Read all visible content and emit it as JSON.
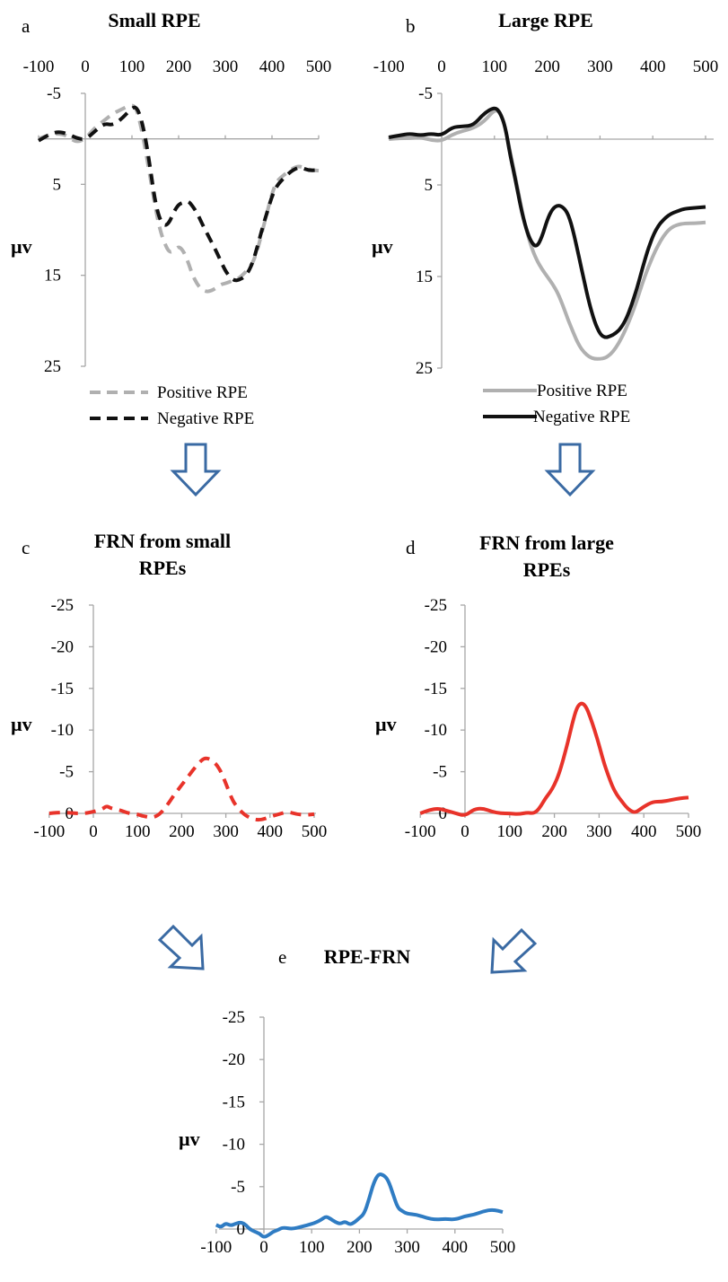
{
  "chart_data": [
    {
      "id": "a",
      "type": "line",
      "panel_label": "a",
      "title": "Small RPE",
      "ylabel": "µv",
      "xlim": [
        -100,
        500
      ],
      "ylim": [
        -5,
        25
      ],
      "y_inverted": true,
      "x_axis_position": "top",
      "xticks": [
        -100,
        0,
        100,
        200,
        300,
        400,
        500
      ],
      "yticks": [
        -5,
        5,
        15,
        25
      ],
      "legend_position": "bottom",
      "series": [
        {
          "name": "Positive RPE",
          "color": "#b0b0b0",
          "dash": "dashed",
          "x": [
            -100,
            -80,
            -60,
            -40,
            -20,
            0,
            20,
            40,
            60,
            80,
            100,
            110,
            120,
            130,
            140,
            150,
            160,
            170,
            180,
            190,
            200,
            210,
            220,
            230,
            240,
            250,
            260,
            270,
            280,
            290,
            300,
            310,
            320,
            330,
            340,
            350,
            360,
            370,
            380,
            390,
            400,
            410,
            420,
            430,
            440,
            450,
            460,
            480,
            500
          ],
          "y": [
            0,
            -0.4,
            -0.6,
            -0.4,
            0.4,
            0,
            -1.2,
            -2,
            -2.8,
            -3.3,
            -3.8,
            -3.3,
            -1.2,
            1.5,
            4.5,
            7.5,
            10,
            11.5,
            12.5,
            12.3,
            11.8,
            12.3,
            13.5,
            15,
            16,
            16.6,
            16.8,
            16.7,
            16.4,
            16,
            15.9,
            15.7,
            15.5,
            15.3,
            14.8,
            14.3,
            13.5,
            12,
            10,
            8,
            6,
            4.7,
            4.2,
            3.8,
            3.4,
            3.1,
            3.0,
            3.4,
            3.5
          ]
        },
        {
          "name": "Negative RPE",
          "color": "#111111",
          "dash": "dashed",
          "x": [
            -100,
            -80,
            -60,
            -40,
            -20,
            0,
            20,
            40,
            60,
            80,
            100,
            110,
            120,
            130,
            140,
            150,
            160,
            170,
            180,
            190,
            200,
            210,
            220,
            230,
            240,
            250,
            260,
            270,
            280,
            290,
            300,
            310,
            320,
            330,
            340,
            350,
            360,
            370,
            380,
            390,
            400,
            410,
            420,
            430,
            440,
            450,
            460,
            480,
            500
          ],
          "y": [
            0.2,
            -0.4,
            -0.8,
            -0.6,
            -0.1,
            0.1,
            -0.8,
            -1.7,
            -1.5,
            -2.3,
            -3.4,
            -3.5,
            -2.2,
            0.2,
            3.5,
            7,
            8.9,
            9.6,
            9.2,
            8,
            7.2,
            7,
            6.8,
            7.4,
            8.2,
            9.3,
            10.3,
            11.3,
            12.3,
            13.4,
            14.5,
            15.2,
            15.6,
            15.5,
            15.2,
            14.6,
            13.4,
            11.6,
            9.7,
            8,
            6.3,
            5.2,
            4.6,
            4.1,
            3.6,
            3.3,
            3.1,
            3.5,
            3.4
          ]
        }
      ]
    },
    {
      "id": "b",
      "type": "line",
      "panel_label": "b",
      "title": "Large RPE",
      "ylabel": "µv",
      "xlim": [
        -100,
        500
      ],
      "ylim": [
        -5,
        25
      ],
      "y_inverted": true,
      "x_axis_position": "top",
      "xticks": [
        -100,
        0,
        100,
        200,
        300,
        400,
        500
      ],
      "yticks": [
        -5,
        5,
        15,
        25
      ],
      "legend_position": "bottom",
      "series": [
        {
          "name": "Positive RPE",
          "color": "#b0b0b0",
          "dash": "solid",
          "x": [
            -100,
            -80,
            -60,
            -40,
            -20,
            0,
            20,
            40,
            60,
            80,
            100,
            110,
            120,
            130,
            140,
            150,
            160,
            170,
            180,
            190,
            200,
            210,
            220,
            230,
            240,
            250,
            260,
            270,
            280,
            290,
            300,
            310,
            320,
            330,
            340,
            350,
            360,
            370,
            380,
            390,
            400,
            410,
            420,
            430,
            440,
            450,
            460,
            480,
            500
          ],
          "y": [
            0,
            -0.1,
            -0.1,
            -0.2,
            0.1,
            0.2,
            -0.5,
            -0.9,
            -1.2,
            -1.9,
            -3.2,
            -3.0,
            -1.5,
            1.5,
            4.2,
            7.2,
            9.8,
            11.8,
            13.2,
            14.2,
            15,
            15.8,
            16.8,
            18.2,
            19.8,
            21.2,
            22.5,
            23.3,
            23.8,
            24.0,
            24.0,
            23.9,
            23.5,
            22.8,
            21.8,
            20.6,
            19.2,
            17.6,
            15.8,
            14.2,
            12.8,
            11.6,
            10.6,
            9.9,
            9.5,
            9.3,
            9.2,
            9.2,
            9.1
          ]
        },
        {
          "name": "Negative RPE",
          "color": "#111111",
          "dash": "solid",
          "x": [
            -100,
            -80,
            -60,
            -40,
            -20,
            0,
            20,
            40,
            60,
            80,
            100,
            110,
            120,
            130,
            140,
            150,
            160,
            170,
            180,
            190,
            200,
            210,
            220,
            230,
            240,
            250,
            260,
            270,
            280,
            290,
            300,
            310,
            320,
            330,
            340,
            350,
            360,
            370,
            380,
            390,
            400,
            410,
            420,
            430,
            440,
            450,
            460,
            480,
            500
          ],
          "y": [
            -0.2,
            -0.4,
            -0.6,
            -0.4,
            -0.6,
            -0.4,
            -1.3,
            -1.4,
            -1.5,
            -2.8,
            -3.5,
            -3.0,
            -1.5,
            1.8,
            4.5,
            7.5,
            9.8,
            11.3,
            11.8,
            10.7,
            8.8,
            7.6,
            7.2,
            7.4,
            8.2,
            10.2,
            12.8,
            15.5,
            18,
            20,
            21.3,
            21.7,
            21.5,
            21.2,
            20.6,
            19.6,
            18.1,
            16.3,
            14.2,
            12.2,
            10.6,
            9.5,
            8.8,
            8.3,
            8.0,
            7.8,
            7.6,
            7.5,
            7.4
          ]
        }
      ]
    },
    {
      "id": "c",
      "type": "line",
      "panel_label": "c",
      "title": "FRN from small RPEs",
      "title_lines": [
        "FRN from small",
        "RPEs"
      ],
      "ylabel": "µv",
      "xlim": [
        -100,
        500
      ],
      "ylim": [
        -25,
        0
      ],
      "y_inverted": true,
      "xticks": [
        -100,
        0,
        100,
        200,
        300,
        400,
        500
      ],
      "yticks": [
        -25,
        -20,
        -15,
        -10,
        -5,
        0
      ],
      "series": [
        {
          "color": "#e8332a",
          "dash": "dashed",
          "x": [
            -100,
            -80,
            -60,
            -40,
            -20,
            0,
            20,
            30,
            40,
            60,
            80,
            100,
            110,
            120,
            130,
            140,
            150,
            160,
            170,
            180,
            190,
            200,
            210,
            220,
            230,
            240,
            250,
            260,
            270,
            280,
            290,
            300,
            310,
            320,
            340,
            360,
            380,
            400,
            420,
            440,
            460,
            480,
            500
          ],
          "y": [
            0,
            -0.1,
            -0.1,
            0,
            0,
            -0.2,
            -0.5,
            -0.9,
            -0.6,
            -0.4,
            0,
            0.1,
            0.3,
            0.4,
            0.5,
            0.4,
            0.1,
            -0.5,
            -1.2,
            -2,
            -2.7,
            -3.4,
            -4.1,
            -4.8,
            -5.5,
            -6.1,
            -6.6,
            -6.6,
            -6.3,
            -5.8,
            -4.9,
            -3.6,
            -2.2,
            -1.1,
            0.1,
            0.7,
            0.8,
            0.4,
            0.1,
            -0.2,
            0.1,
            0.2,
            0.1
          ]
        }
      ]
    },
    {
      "id": "d",
      "type": "line",
      "panel_label": "d",
      "title": "FRN from large RPEs",
      "title_lines": [
        "FRN from large",
        "RPEs"
      ],
      "ylabel": "µv",
      "xlim": [
        -100,
        500
      ],
      "ylim": [
        -25,
        0
      ],
      "y_inverted": true,
      "xticks": [
        -100,
        0,
        100,
        200,
        300,
        400,
        500
      ],
      "yticks": [
        -25,
        -20,
        -15,
        -10,
        -5,
        0
      ],
      "series": [
        {
          "color": "#e8332a",
          "dash": "solid",
          "x": [
            -100,
            -80,
            -60,
            -40,
            -20,
            0,
            20,
            40,
            60,
            80,
            100,
            120,
            140,
            150,
            160,
            170,
            180,
            190,
            200,
            210,
            220,
            230,
            240,
            250,
            260,
            270,
            280,
            290,
            300,
            310,
            320,
            330,
            340,
            350,
            360,
            370,
            380,
            390,
            400,
            420,
            440,
            460,
            480,
            500
          ],
          "y": [
            0,
            -0.4,
            -0.6,
            -0.3,
            0,
            0.3,
            -0.5,
            -0.6,
            -0.2,
            0,
            0,
            0.1,
            -0.1,
            0,
            -0.2,
            -0.9,
            -1.8,
            -2.5,
            -3.4,
            -4.7,
            -6.5,
            -8.5,
            -10.8,
            -12.7,
            -13.3,
            -12.9,
            -11.6,
            -10,
            -8.2,
            -6.2,
            -4.6,
            -3.2,
            -2.2,
            -1.5,
            -0.8,
            -0.3,
            -0.1,
            -0.4,
            -0.8,
            -1.4,
            -1.4,
            -1.6,
            -1.8,
            -1.9
          ]
        }
      ]
    },
    {
      "id": "e",
      "type": "line",
      "panel_label": "e",
      "title": "RPE-FRN",
      "ylabel": "µv",
      "xlim": [
        -100,
        500
      ],
      "ylim": [
        -25,
        0
      ],
      "y_inverted": true,
      "xticks": [
        -100,
        0,
        100,
        200,
        300,
        400,
        500
      ],
      "yticks": [
        -25,
        -20,
        -15,
        -10,
        -5,
        0
      ],
      "series": [
        {
          "color": "#2f7cc3",
          "dash": "solid",
          "x": [
            -100,
            -90,
            -80,
            -70,
            -60,
            -50,
            -40,
            -30,
            -20,
            -10,
            0,
            10,
            20,
            30,
            40,
            60,
            80,
            100,
            110,
            120,
            130,
            140,
            150,
            160,
            170,
            180,
            190,
            200,
            210,
            220,
            230,
            240,
            250,
            260,
            270,
            280,
            290,
            300,
            320,
            340,
            360,
            380,
            400,
            420,
            440,
            460,
            480,
            500
          ],
          "y": [
            -0.5,
            -0.2,
            -0.7,
            -0.4,
            -0.6,
            -0.8,
            -0.6,
            0,
            0.3,
            0.5,
            1,
            0.7,
            0.3,
            0.1,
            -0.2,
            0,
            -0.3,
            -0.6,
            -0.8,
            -1.1,
            -1.5,
            -1.2,
            -0.8,
            -0.6,
            -0.9,
            -0.5,
            -0.8,
            -1.3,
            -1.8,
            -3.5,
            -5.5,
            -6.5,
            -6.4,
            -5.8,
            -4.2,
            -2.5,
            -2.1,
            -1.8,
            -1.7,
            -1.3,
            -1.1,
            -1.2,
            -1.1,
            -1.5,
            -1.7,
            -2.1,
            -2.3,
            -2.0
          ]
        }
      ]
    }
  ]
}
